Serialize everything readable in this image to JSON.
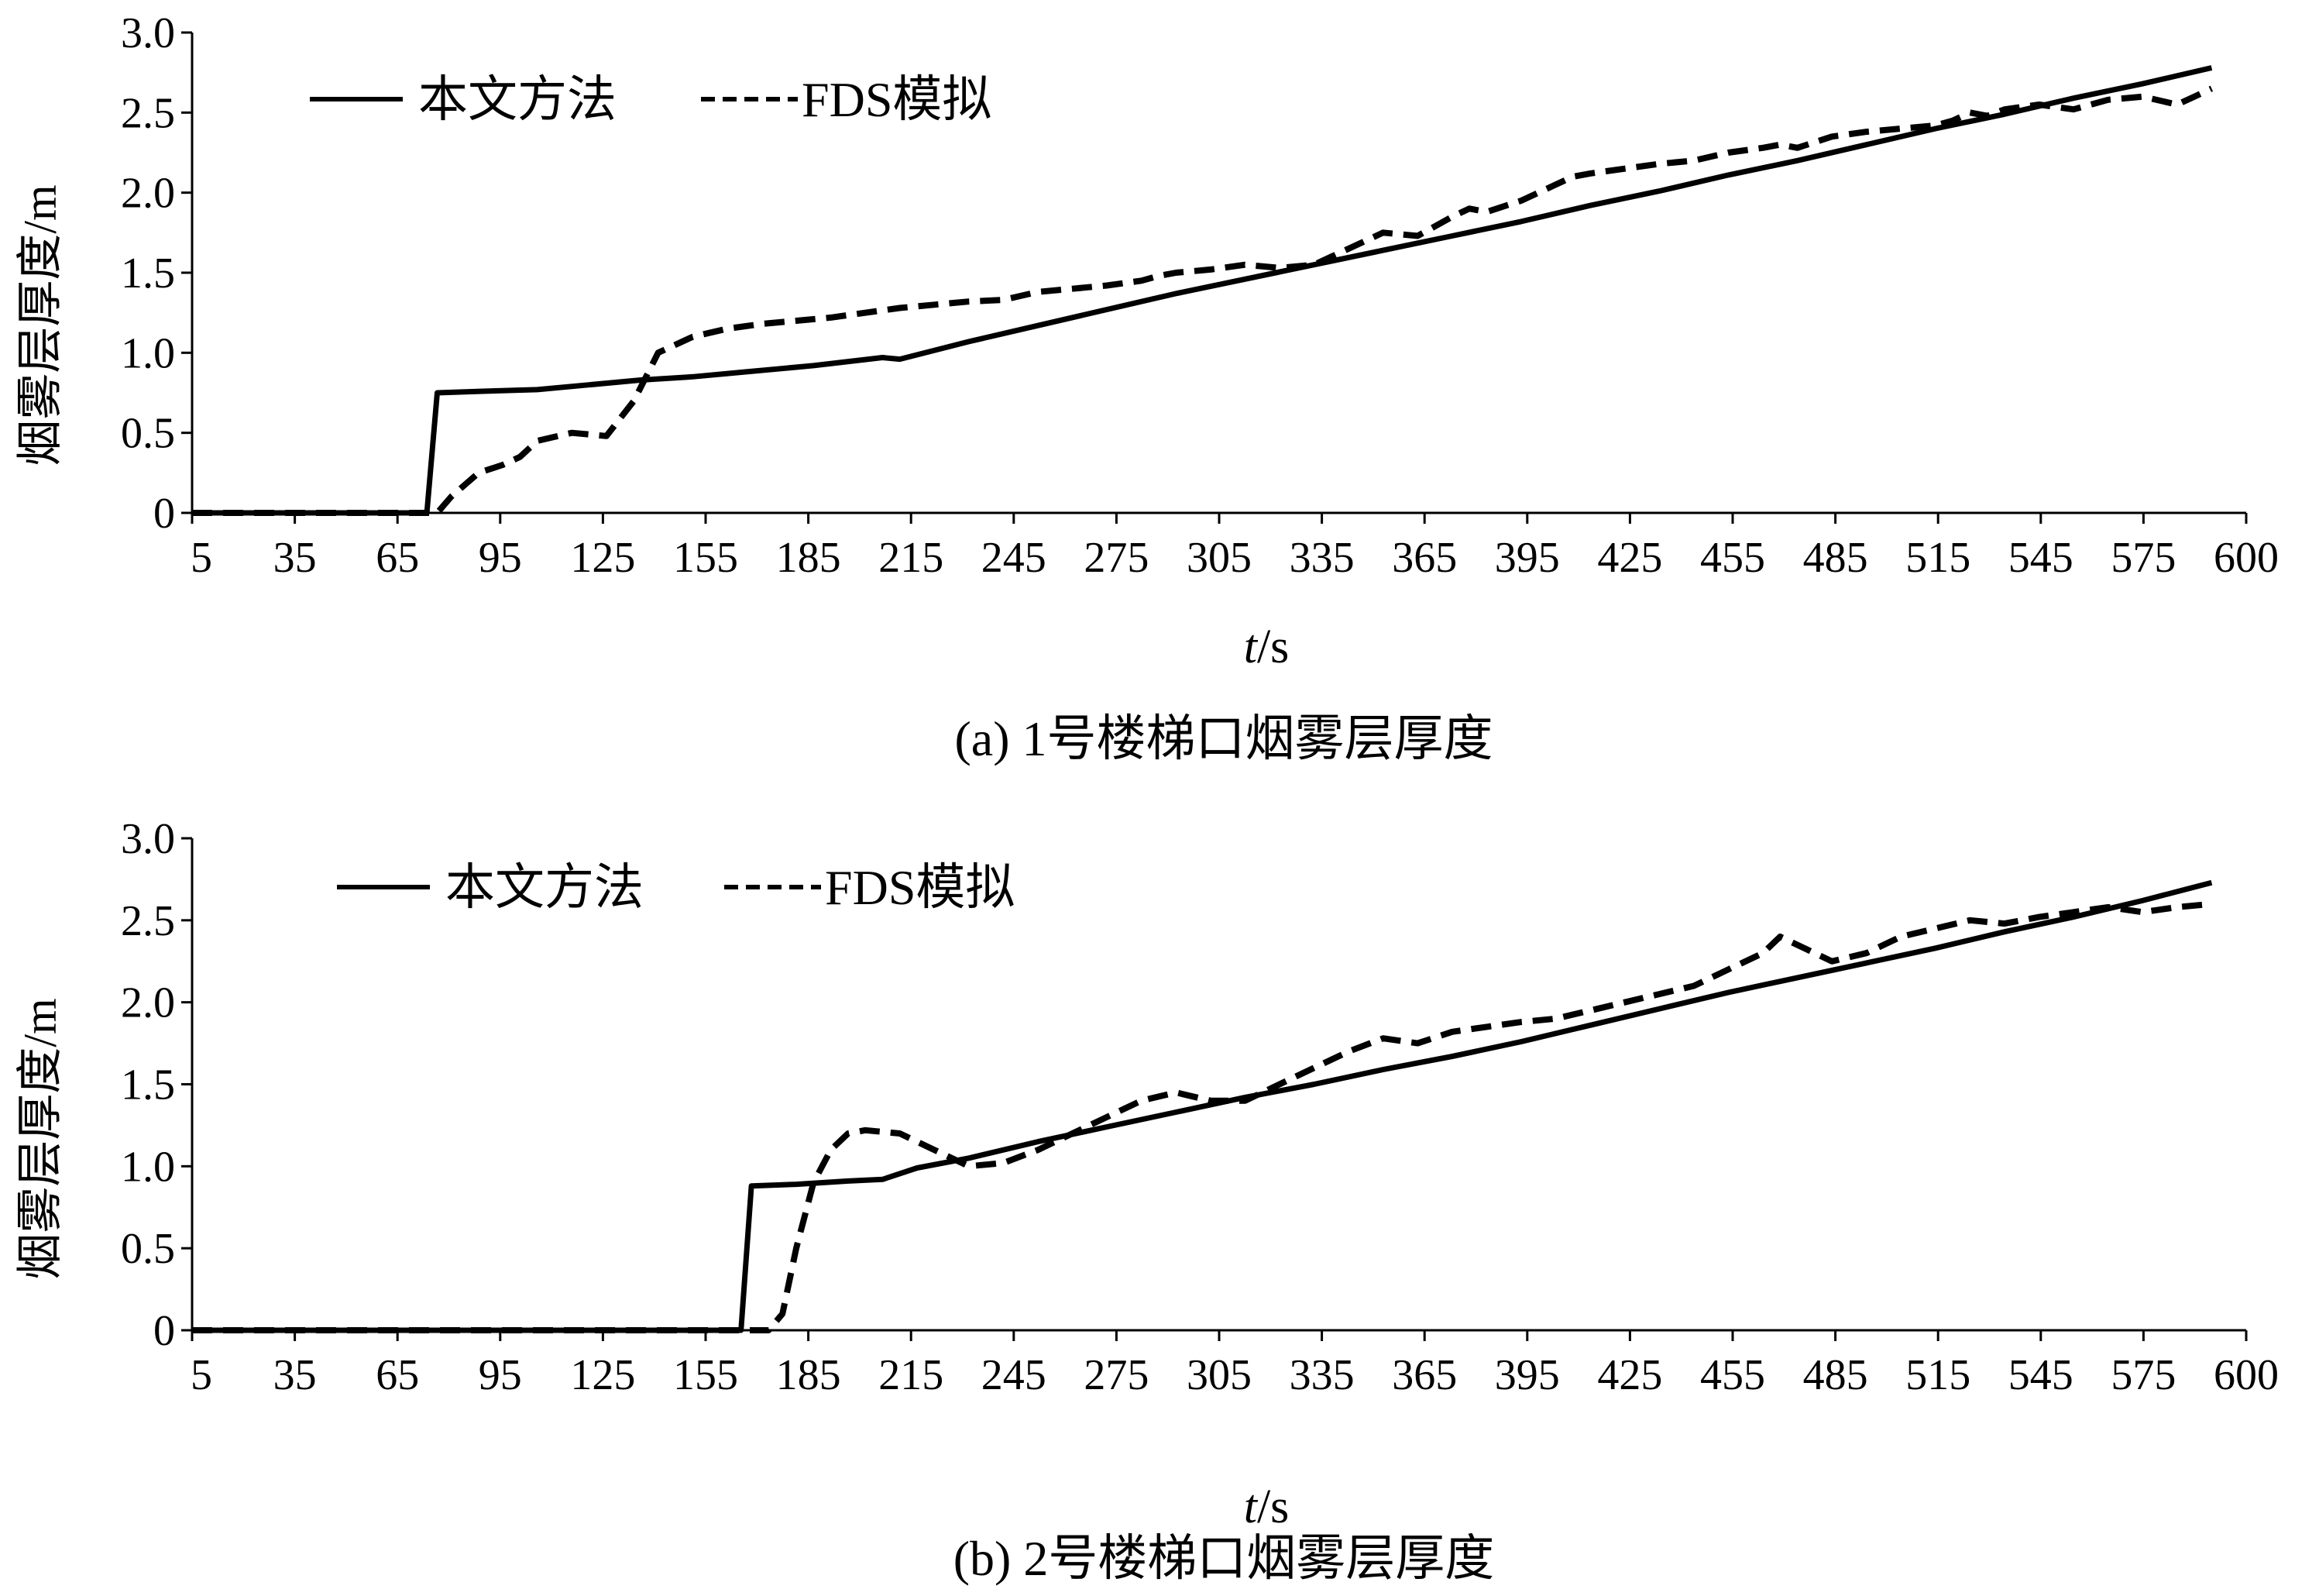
{
  "chart_data": [
    {
      "type": "line",
      "caption": "(a) 1号楼梯口烟雾层厚度",
      "xlabel_italic": "t",
      "xlabel_unit": "/s",
      "ylabel": "烟雾层厚度/m",
      "ylim": [
        0,
        3.0
      ],
      "yticks": [
        "0",
        "0.5",
        "1.0",
        "1.5",
        "2.0",
        "2.5",
        "3.0"
      ],
      "xticks": [
        "5",
        "35",
        "65",
        "95",
        "125",
        "155",
        "185",
        "215",
        "245",
        "275",
        "305",
        "335",
        "365",
        "395",
        "425",
        "455",
        "485",
        "515",
        "545",
        "575",
        "600"
      ],
      "legend_placement": "top-left",
      "series": [
        {
          "name": "本文方法",
          "style": "solid",
          "x": [
            5,
            73,
            76,
            90,
            105,
            120,
            135,
            150,
            165,
            185,
            205,
            210,
            230,
            250,
            270,
            290,
            310,
            330,
            350,
            370,
            390,
            410,
            430,
            450,
            470,
            490,
            510,
            530,
            550,
            570,
            590
          ],
          "y": [
            0,
            0,
            0.75,
            0.76,
            0.77,
            0.8,
            0.83,
            0.85,
            0.88,
            0.92,
            0.97,
            0.96,
            1.07,
            1.17,
            1.27,
            1.37,
            1.46,
            1.55,
            1.64,
            1.73,
            1.82,
            1.92,
            2.01,
            2.11,
            2.2,
            2.3,
            2.4,
            2.49,
            2.59,
            2.68,
            2.78
          ]
        },
        {
          "name": "FDS模拟",
          "style": "dashed",
          "x": [
            5,
            76,
            80,
            88,
            95,
            100,
            105,
            115,
            125,
            133,
            140,
            150,
            160,
            170,
            180,
            190,
            200,
            210,
            220,
            230,
            240,
            250,
            260,
            270,
            280,
            285,
            290,
            300,
            310,
            320,
            330,
            335,
            340,
            345,
            350,
            360,
            370,
            375,
            380,
            390,
            400,
            405,
            410,
            420,
            430,
            440,
            450,
            460,
            465,
            470,
            480,
            490,
            500,
            510,
            515,
            520,
            525,
            530,
            540,
            550,
            560,
            570,
            580,
            585,
            590
          ],
          "y": [
            0,
            0,
            0.1,
            0.25,
            0.3,
            0.35,
            0.45,
            0.5,
            0.48,
            0.7,
            1.0,
            1.1,
            1.15,
            1.18,
            1.2,
            1.22,
            1.25,
            1.28,
            1.3,
            1.32,
            1.33,
            1.38,
            1.4,
            1.42,
            1.45,
            1.48,
            1.5,
            1.52,
            1.55,
            1.53,
            1.55,
            1.6,
            1.65,
            1.7,
            1.75,
            1.73,
            1.85,
            1.9,
            1.88,
            1.95,
            2.05,
            2.1,
            2.12,
            2.15,
            2.18,
            2.2,
            2.25,
            2.28,
            2.3,
            2.28,
            2.35,
            2.38,
            2.4,
            2.42,
            2.45,
            2.5,
            2.48,
            2.52,
            2.55,
            2.52,
            2.58,
            2.6,
            2.55,
            2.6,
            2.65
          ]
        }
      ]
    },
    {
      "type": "line",
      "caption": "(b) 2号楼梯口烟雾层厚度",
      "xlabel_italic": "t",
      "xlabel_unit": "/s",
      "ylabel": "烟雾层厚度/m",
      "ylim": [
        0,
        3.0
      ],
      "yticks": [
        "0",
        "0.5",
        "1.0",
        "1.5",
        "2.0",
        "2.5",
        "3.0"
      ],
      "xticks": [
        "5",
        "35",
        "65",
        "95",
        "125",
        "155",
        "185",
        "215",
        "245",
        "275",
        "305",
        "335",
        "365",
        "395",
        "425",
        "455",
        "485",
        "515",
        "545",
        "575",
        "600"
      ],
      "legend_placement": "top-left",
      "series": [
        {
          "name": "本文方法",
          "style": "solid",
          "x": [
            5,
            164,
            167,
            180,
            195,
            205,
            215,
            230,
            250,
            270,
            290,
            310,
            330,
            350,
            370,
            390,
            410,
            430,
            450,
            470,
            490,
            510,
            530,
            550,
            570,
            590
          ],
          "y": [
            0,
            0,
            0.88,
            0.89,
            0.91,
            0.92,
            0.99,
            1.05,
            1.15,
            1.24,
            1.33,
            1.42,
            1.5,
            1.59,
            1.67,
            1.76,
            1.86,
            1.96,
            2.06,
            2.15,
            2.24,
            2.33,
            2.43,
            2.52,
            2.62,
            2.73
          ]
        },
        {
          "name": "FDS模拟",
          "style": "dashed",
          "x": [
            5,
            172,
            176,
            180,
            185,
            190,
            195,
            200,
            210,
            220,
            230,
            240,
            250,
            260,
            270,
            280,
            290,
            300,
            310,
            320,
            330,
            340,
            350,
            360,
            370,
            380,
            390,
            400,
            410,
            420,
            430,
            440,
            450,
            460,
            465,
            470,
            480,
            490,
            500,
            510,
            520,
            530,
            540,
            550,
            560,
            570,
            580,
            590
          ],
          "y": [
            0,
            0,
            0.1,
            0.5,
            0.9,
            1.1,
            1.2,
            1.22,
            1.2,
            1.1,
            1.0,
            1.02,
            1.1,
            1.2,
            1.3,
            1.4,
            1.45,
            1.4,
            1.4,
            1.5,
            1.6,
            1.7,
            1.78,
            1.75,
            1.82,
            1.85,
            1.88,
            1.9,
            1.95,
            2.0,
            2.05,
            2.1,
            2.2,
            2.3,
            2.4,
            2.35,
            2.25,
            2.3,
            2.4,
            2.45,
            2.5,
            2.48,
            2.52,
            2.55,
            2.58,
            2.55,
            2.58,
            2.6
          ]
        }
      ]
    }
  ]
}
